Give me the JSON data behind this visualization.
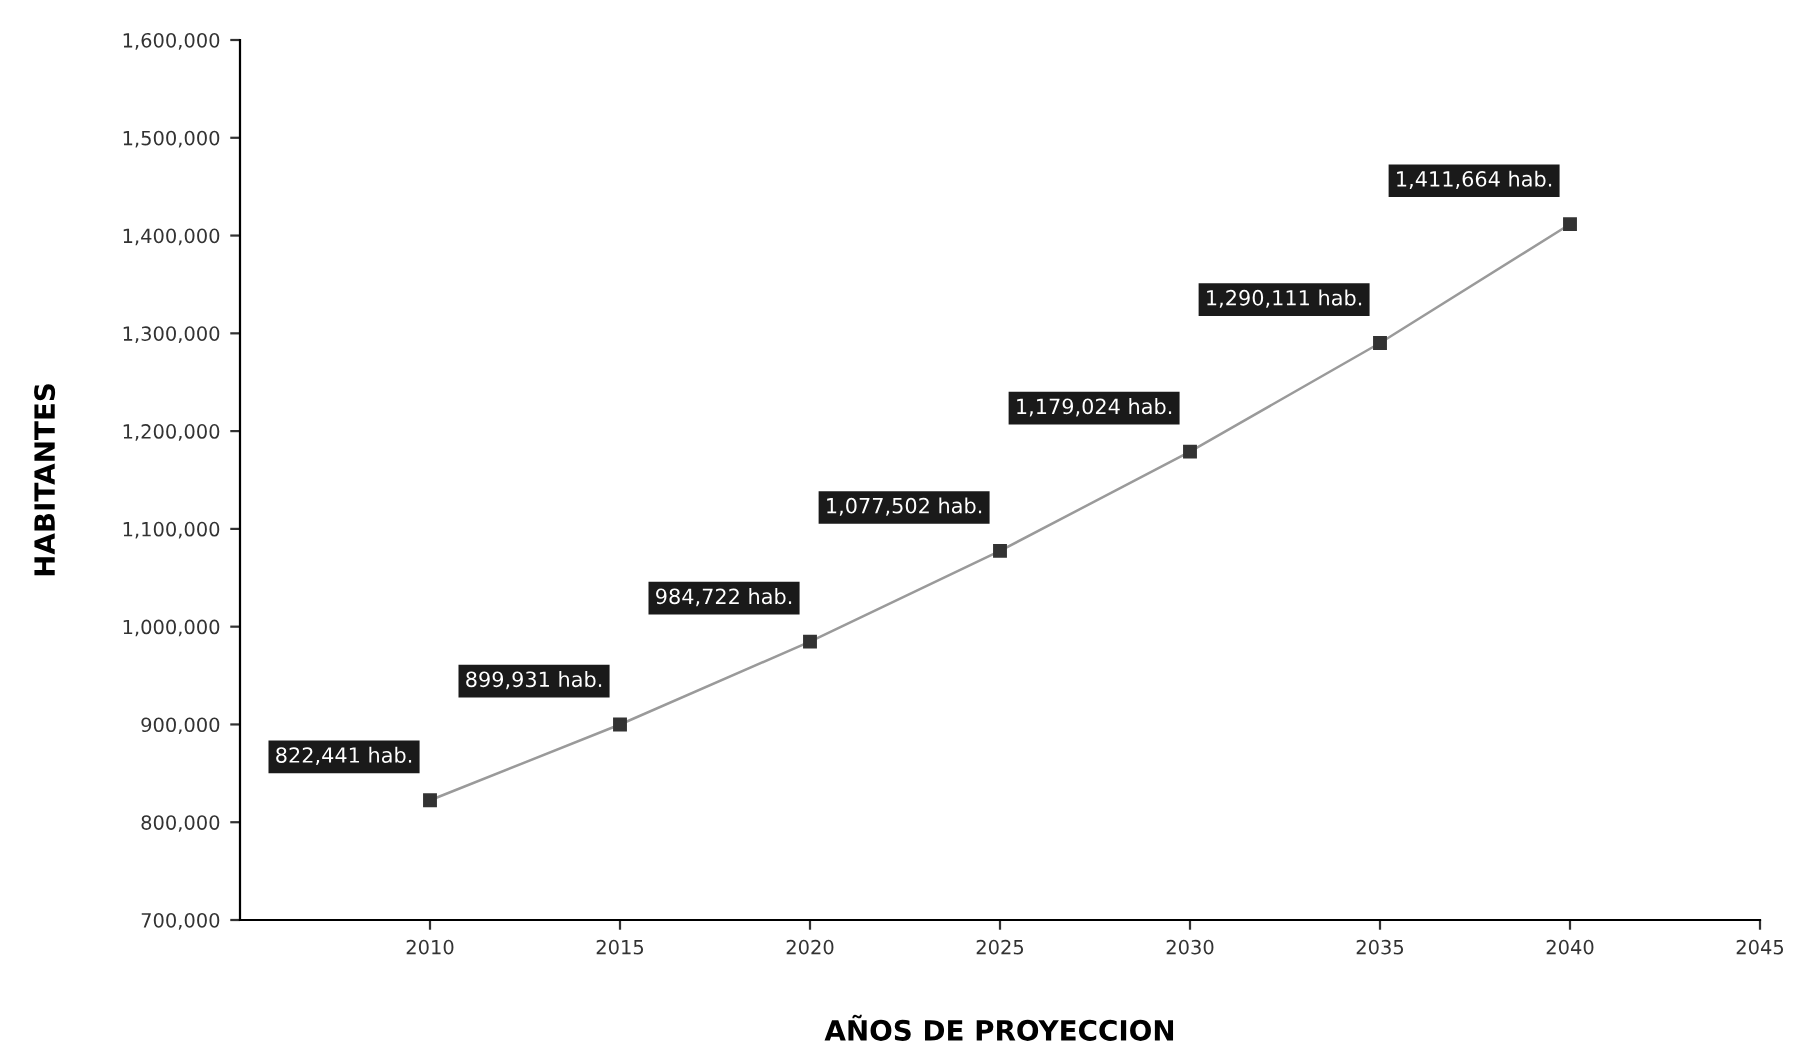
{
  "chart_data": {
    "type": "line",
    "xlabel": "AÑOS DE PROYECCION",
    "ylabel": "HABITANTES",
    "x": [
      2010,
      2015,
      2020,
      2025,
      2030,
      2035,
      2040
    ],
    "series": [
      {
        "color": "#9a9a9a",
        "values": [
          822441,
          899931,
          984722,
          1077502,
          1179024,
          1290111,
          1411664
        ],
        "value_labels": [
          "822,441 hab.",
          "899,931 hab.",
          "984,722 hab.",
          "1,077,502 hab.",
          "1,179,024 hab.",
          "1,290,111 hab.",
          "1,411,664 hab."
        ]
      }
    ],
    "xlim": [
      2005,
      2045
    ],
    "xticks": [
      2010,
      2015,
      2020,
      2025,
      2030,
      2035,
      2040,
      2045
    ],
    "ylim": [
      700000,
      1600000
    ],
    "yticks": [
      {
        "value": 700000,
        "label": "700,000"
      },
      {
        "value": 800000,
        "label": "800,000"
      },
      {
        "value": 900000,
        "label": "900,000"
      },
      {
        "value": 1000000,
        "label": "1,000,000"
      },
      {
        "value": 1100000,
        "label": "1,100,000"
      },
      {
        "value": 1200000,
        "label": "1,200,000"
      },
      {
        "value": 1300000,
        "label": "1,300,000"
      },
      {
        "value": 1400000,
        "label": "1,400,000"
      },
      {
        "value": 1500000,
        "label": "1,500,000"
      },
      {
        "value": 1600000,
        "label": "1,600,000"
      }
    ],
    "marker": "square",
    "line_style": "solid",
    "grid": false,
    "legend": false
  }
}
